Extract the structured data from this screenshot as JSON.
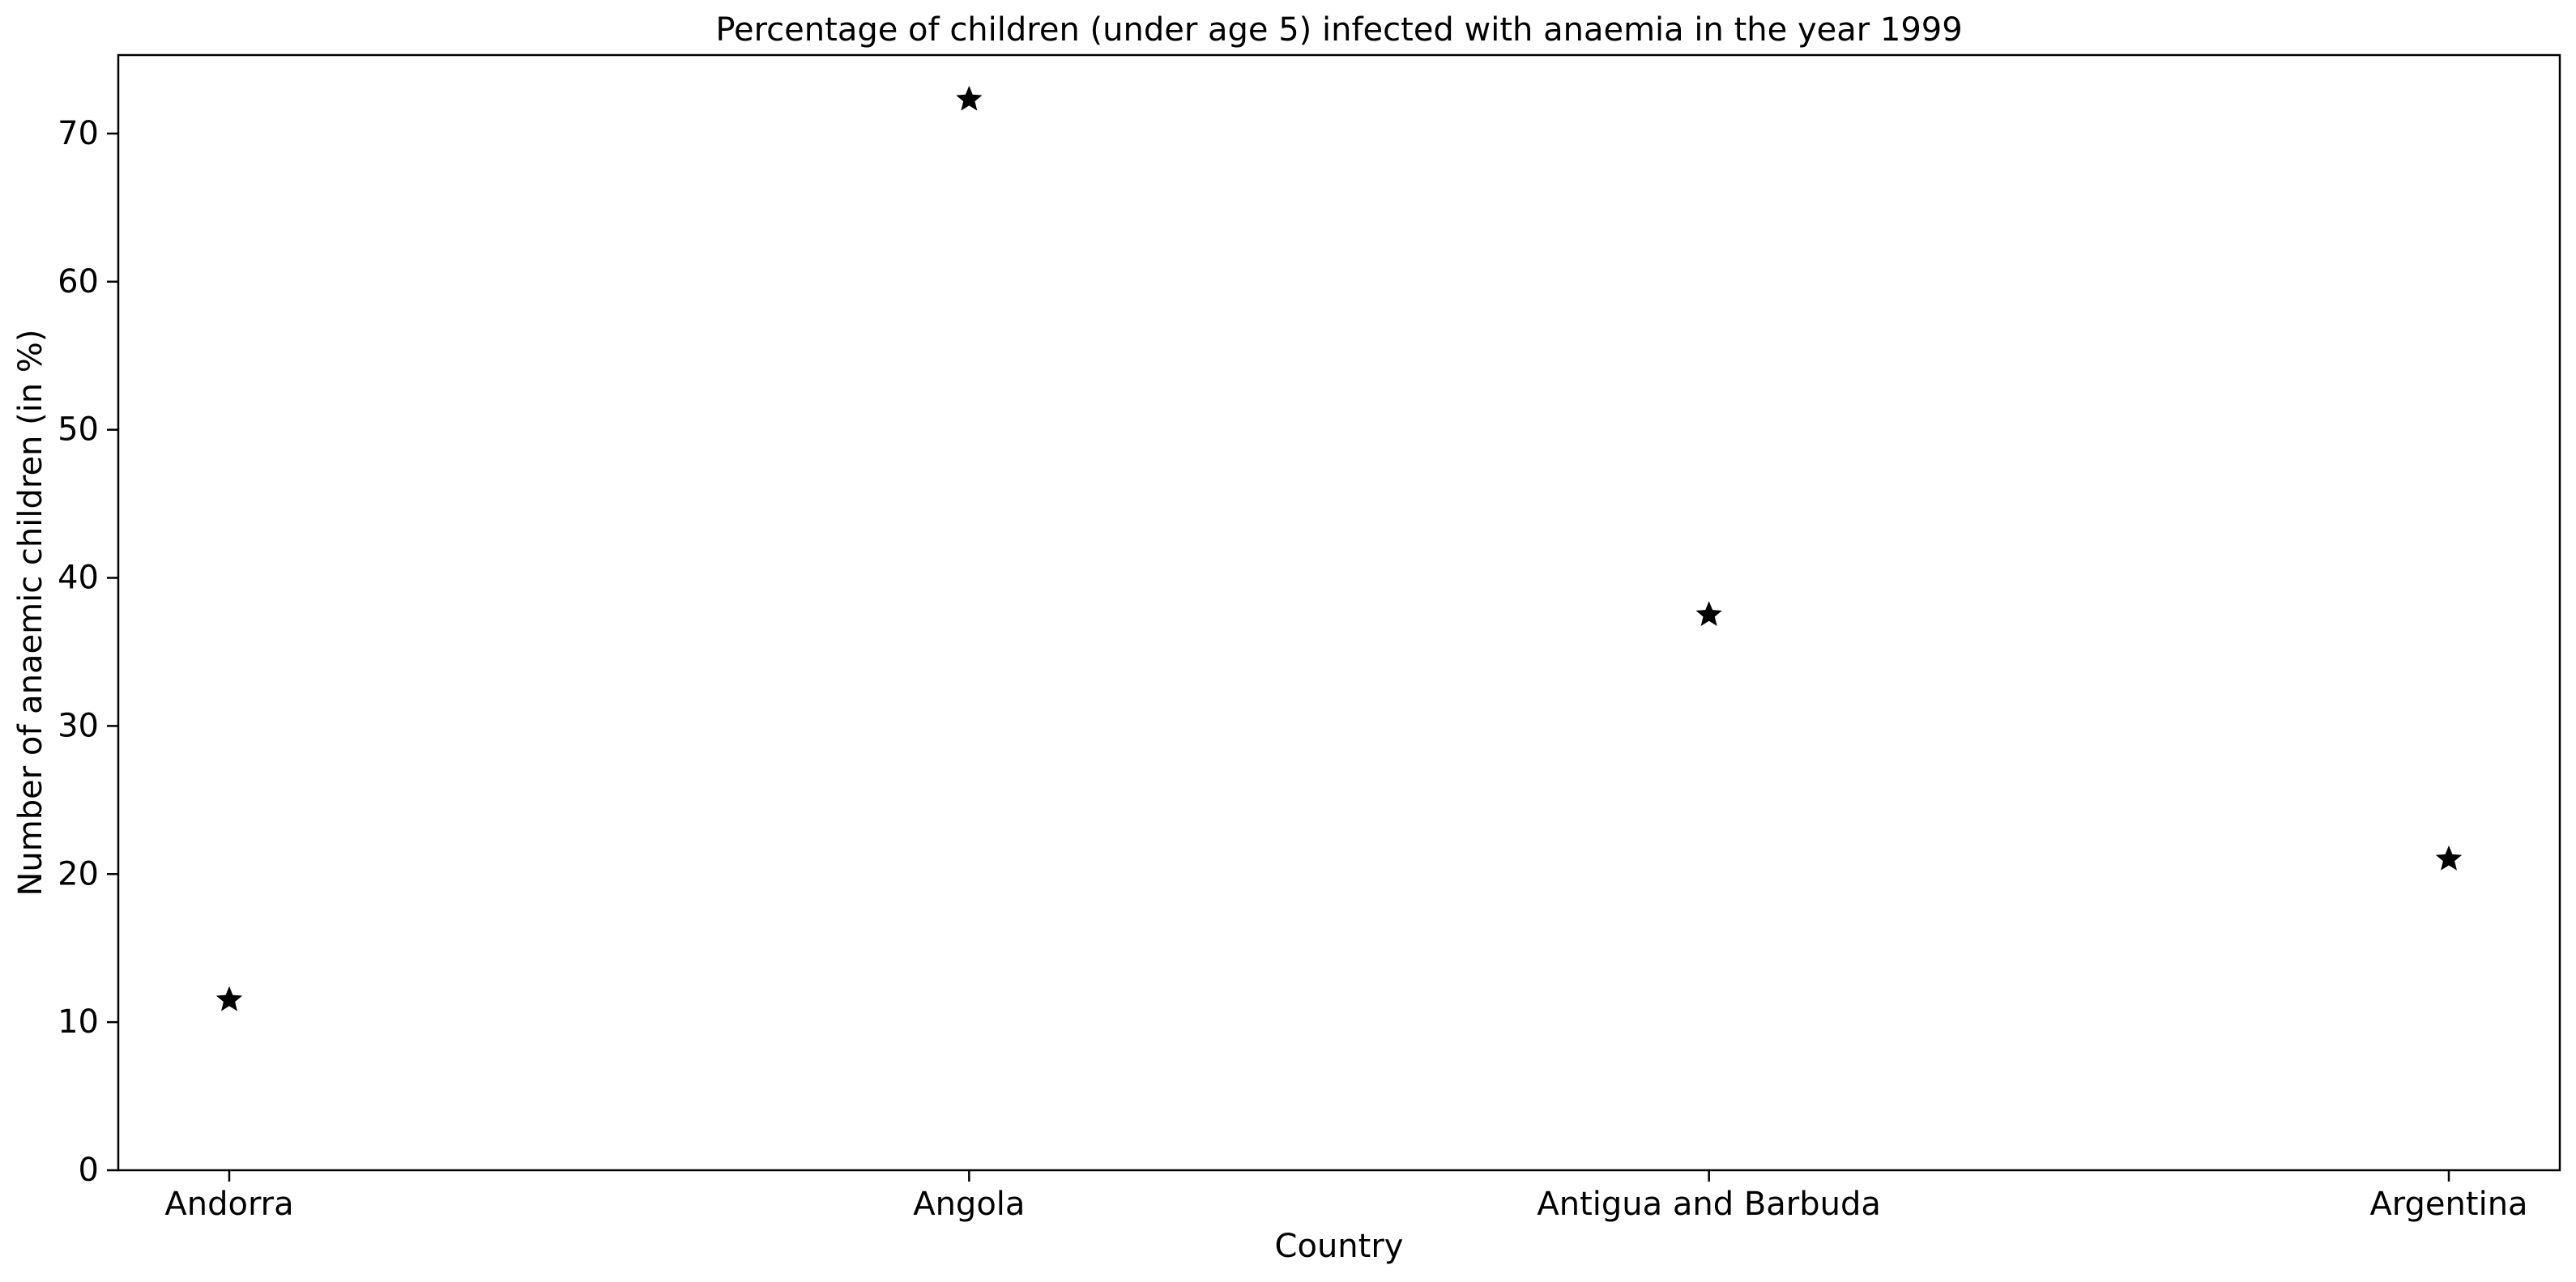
{
  "chart_data": {
    "type": "scatter",
    "title": "Percentage of children (under age 5) infected with anaemia in the year 1999",
    "xlabel": "Country",
    "ylabel": "Number of anaemic children (in %)",
    "categories": [
      "Andorra",
      "Angola",
      "Antigua and Barbuda",
      "Argentina"
    ],
    "series": [
      {
        "values": [
          11.5,
          72.3,
          37.5,
          21.0
        ],
        "marker": "star",
        "color": "#000000"
      }
    ],
    "ylim": [
      0,
      75.3
    ],
    "yticks": [
      0,
      10,
      20,
      30,
      40,
      50,
      60,
      70
    ],
    "grid": false,
    "legend": false
  }
}
